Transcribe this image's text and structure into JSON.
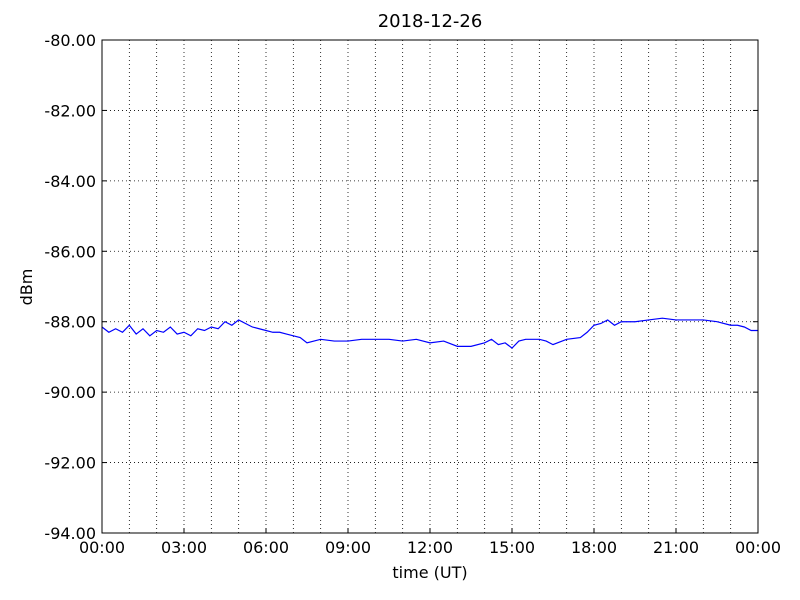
{
  "chart_data": {
    "type": "line",
    "title": "2018-12-26",
    "xlabel": "time (UT)",
    "ylabel": "dBm",
    "grid": true,
    "xlim": [
      0,
      24
    ],
    "xticks": [
      {
        "value": 0,
        "label": "00:00"
      },
      {
        "value": 3,
        "label": "03:00"
      },
      {
        "value": 6,
        "label": "06:00"
      },
      {
        "value": 9,
        "label": "09:00"
      },
      {
        "value": 12,
        "label": "12:00"
      },
      {
        "value": 15,
        "label": "15:00"
      },
      {
        "value": 18,
        "label": "18:00"
      },
      {
        "value": 21,
        "label": "21:00"
      },
      {
        "value": 24,
        "label": "00:00"
      }
    ],
    "xminorticks": [
      1,
      2,
      4,
      5,
      7,
      8,
      10,
      11,
      13,
      14,
      16,
      17,
      19,
      20,
      22,
      23
    ],
    "ylim": [
      -94,
      -80
    ],
    "yticks": [
      {
        "value": -94,
        "label": "-94.00"
      },
      {
        "value": -92,
        "label": "-92.00"
      },
      {
        "value": -90,
        "label": "-90.00"
      },
      {
        "value": -88,
        "label": "-88.00"
      },
      {
        "value": -86,
        "label": "-86.00"
      },
      {
        "value": -84,
        "label": "-84.00"
      },
      {
        "value": -82,
        "label": "-82.00"
      },
      {
        "value": -80,
        "label": "-80.00"
      }
    ],
    "series": [
      {
        "name": "signal",
        "color": "#0000ff",
        "x": [
          0,
          0.25,
          0.5,
          0.75,
          1,
          1.25,
          1.5,
          1.75,
          2,
          2.25,
          2.5,
          2.75,
          3,
          3.25,
          3.5,
          3.75,
          4,
          4.25,
          4.5,
          4.75,
          5,
          5.25,
          5.5,
          5.75,
          6,
          6.25,
          6.5,
          6.75,
          7,
          7.25,
          7.5,
          8,
          8.5,
          9,
          9.5,
          10,
          10.5,
          11,
          11.5,
          12,
          12.5,
          13,
          13.5,
          14,
          14.25,
          14.5,
          14.75,
          15,
          15.25,
          15.5,
          16,
          16.25,
          16.5,
          17,
          17.5,
          17.75,
          18,
          18.25,
          18.5,
          18.75,
          19,
          19.5,
          20,
          20.5,
          21,
          21.5,
          22,
          22.5,
          23,
          23.25,
          23.5,
          23.75,
          24
        ],
        "values": [
          -88.15,
          -88.3,
          -88.2,
          -88.3,
          -88.1,
          -88.35,
          -88.2,
          -88.4,
          -88.25,
          -88.3,
          -88.15,
          -88.35,
          -88.3,
          -88.4,
          -88.2,
          -88.25,
          -88.15,
          -88.2,
          -88.0,
          -88.1,
          -87.95,
          -88.05,
          -88.15,
          -88.2,
          -88.25,
          -88.3,
          -88.3,
          -88.35,
          -88.4,
          -88.45,
          -88.6,
          -88.5,
          -88.55,
          -88.55,
          -88.5,
          -88.5,
          -88.5,
          -88.55,
          -88.5,
          -88.6,
          -88.55,
          -88.7,
          -88.7,
          -88.6,
          -88.5,
          -88.65,
          -88.6,
          -88.75,
          -88.55,
          -88.5,
          -88.5,
          -88.55,
          -88.65,
          -88.5,
          -88.45,
          -88.3,
          -88.1,
          -88.05,
          -87.95,
          -88.1,
          -88.0,
          -88.0,
          -87.95,
          -87.9,
          -87.95,
          -87.95,
          -87.95,
          -88.0,
          -88.1,
          -88.1,
          -88.15,
          -88.25,
          -88.25
        ]
      }
    ]
  }
}
